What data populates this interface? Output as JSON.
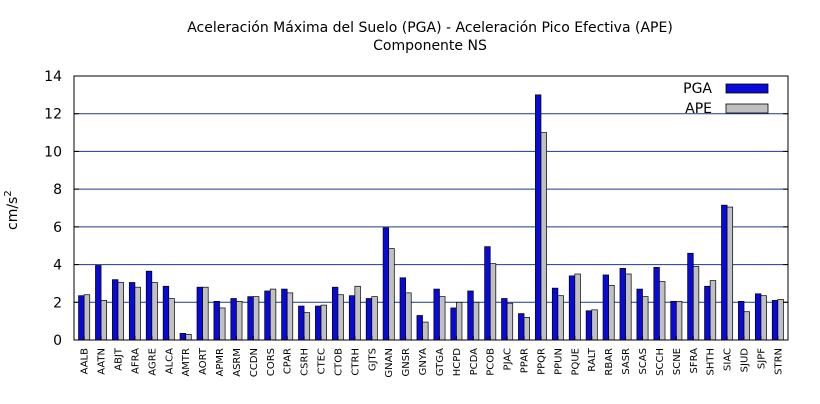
{
  "chart_data": {
    "type": "bar",
    "title": "Aceleración Máxima del Suelo (PGA) -  Aceleración Pico Efectiva (APE)",
    "subtitle": "Componente NS",
    "ylabel": "cm/s",
    "ylabel_superscript": "2",
    "xlabel": "",
    "ylim": [
      0,
      14
    ],
    "yticks": [
      0,
      2,
      4,
      6,
      8,
      10,
      12,
      14
    ],
    "grid": "horizontal",
    "legend_position": "top-right",
    "categories": [
      "AALB",
      "AATN",
      "ABJT",
      "AFRA",
      "AGRE",
      "ALCA",
      "AMTR",
      "AORT",
      "APMR",
      "ASRM",
      "CCDN",
      "CORS",
      "CPAR",
      "CSRH",
      "CTEC",
      "CTOB",
      "CTRH",
      "GJTS",
      "GNAN",
      "GNSR",
      "GNYA",
      "GTGA",
      "HCPD",
      "PCDA",
      "PCOB",
      "PJAC",
      "PPAR",
      "PPQR",
      "PPUN",
      "PQUE",
      "RALT",
      "RBAR",
      "SASR",
      "SCAS",
      "SCCH",
      "SCNE",
      "SFRA",
      "SHTH",
      "SIAC",
      "SJUD",
      "SJPF",
      "STRN"
    ],
    "series": [
      {
        "name": "PGA",
        "color": "#0a0ad8",
        "values": [
          2.35,
          3.95,
          3.2,
          3.05,
          3.65,
          2.85,
          0.35,
          2.8,
          2.05,
          2.2,
          2.3,
          2.6,
          2.7,
          1.8,
          1.8,
          2.8,
          2.35,
          2.2,
          5.95,
          3.3,
          1.3,
          2.7,
          1.7,
          2.6,
          4.95,
          2.2,
          1.4,
          13.0,
          2.75,
          3.4,
          1.55,
          3.45,
          3.8,
          2.7,
          3.85,
          2.05,
          4.6,
          2.85,
          7.15,
          2.05,
          2.45,
          2.1
        ]
      },
      {
        "name": "APE",
        "color": "#c0c0c0",
        "values": [
          2.4,
          2.1,
          3.05,
          2.8,
          3.05,
          2.2,
          0.3,
          2.8,
          1.7,
          2.05,
          2.3,
          2.7,
          2.5,
          1.45,
          1.85,
          2.4,
          2.85,
          2.3,
          4.85,
          2.5,
          0.95,
          2.3,
          2.0,
          2.0,
          4.05,
          1.95,
          1.2,
          11.0,
          2.35,
          3.5,
          1.6,
          2.9,
          3.5,
          2.3,
          3.1,
          2.05,
          3.9,
          3.15,
          7.05,
          1.5,
          2.35,
          2.15
        ]
      }
    ]
  }
}
